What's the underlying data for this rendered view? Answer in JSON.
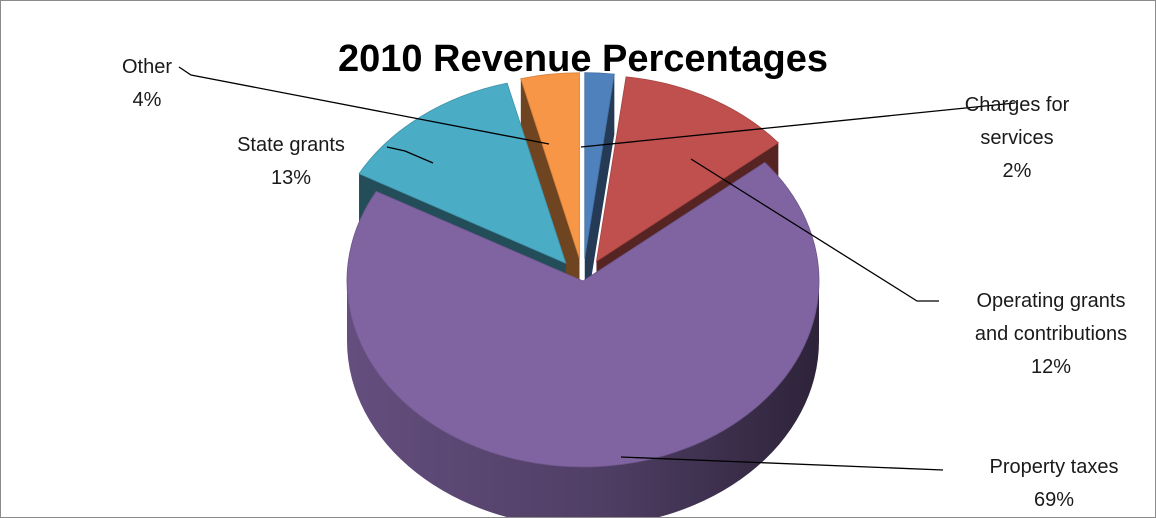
{
  "chart_data": {
    "type": "pie",
    "variant": "3d-exploded",
    "title": "2010 Revenue Percentages",
    "slices": [
      {
        "label_lines": [
          "Charges for",
          "services"
        ],
        "value": 2,
        "value_label": "2%",
        "color": "#4F81BD"
      },
      {
        "label_lines": [
          "Operating grants",
          "and contributions"
        ],
        "value": 12,
        "value_label": "12%",
        "color": "#C0504D"
      },
      {
        "label_lines": [
          "Property taxes"
        ],
        "value": 69,
        "value_label": "69%",
        "color": "#8064A2"
      },
      {
        "label_lines": [
          "State grants"
        ],
        "value": 13,
        "value_label": "13%",
        "color": "#4BACC6"
      },
      {
        "label_lines": [
          "Other"
        ],
        "value": 4,
        "value_label": "4%",
        "color": "#F79646"
      }
    ],
    "legend": "none",
    "data_labels": "outside with leader lines"
  }
}
